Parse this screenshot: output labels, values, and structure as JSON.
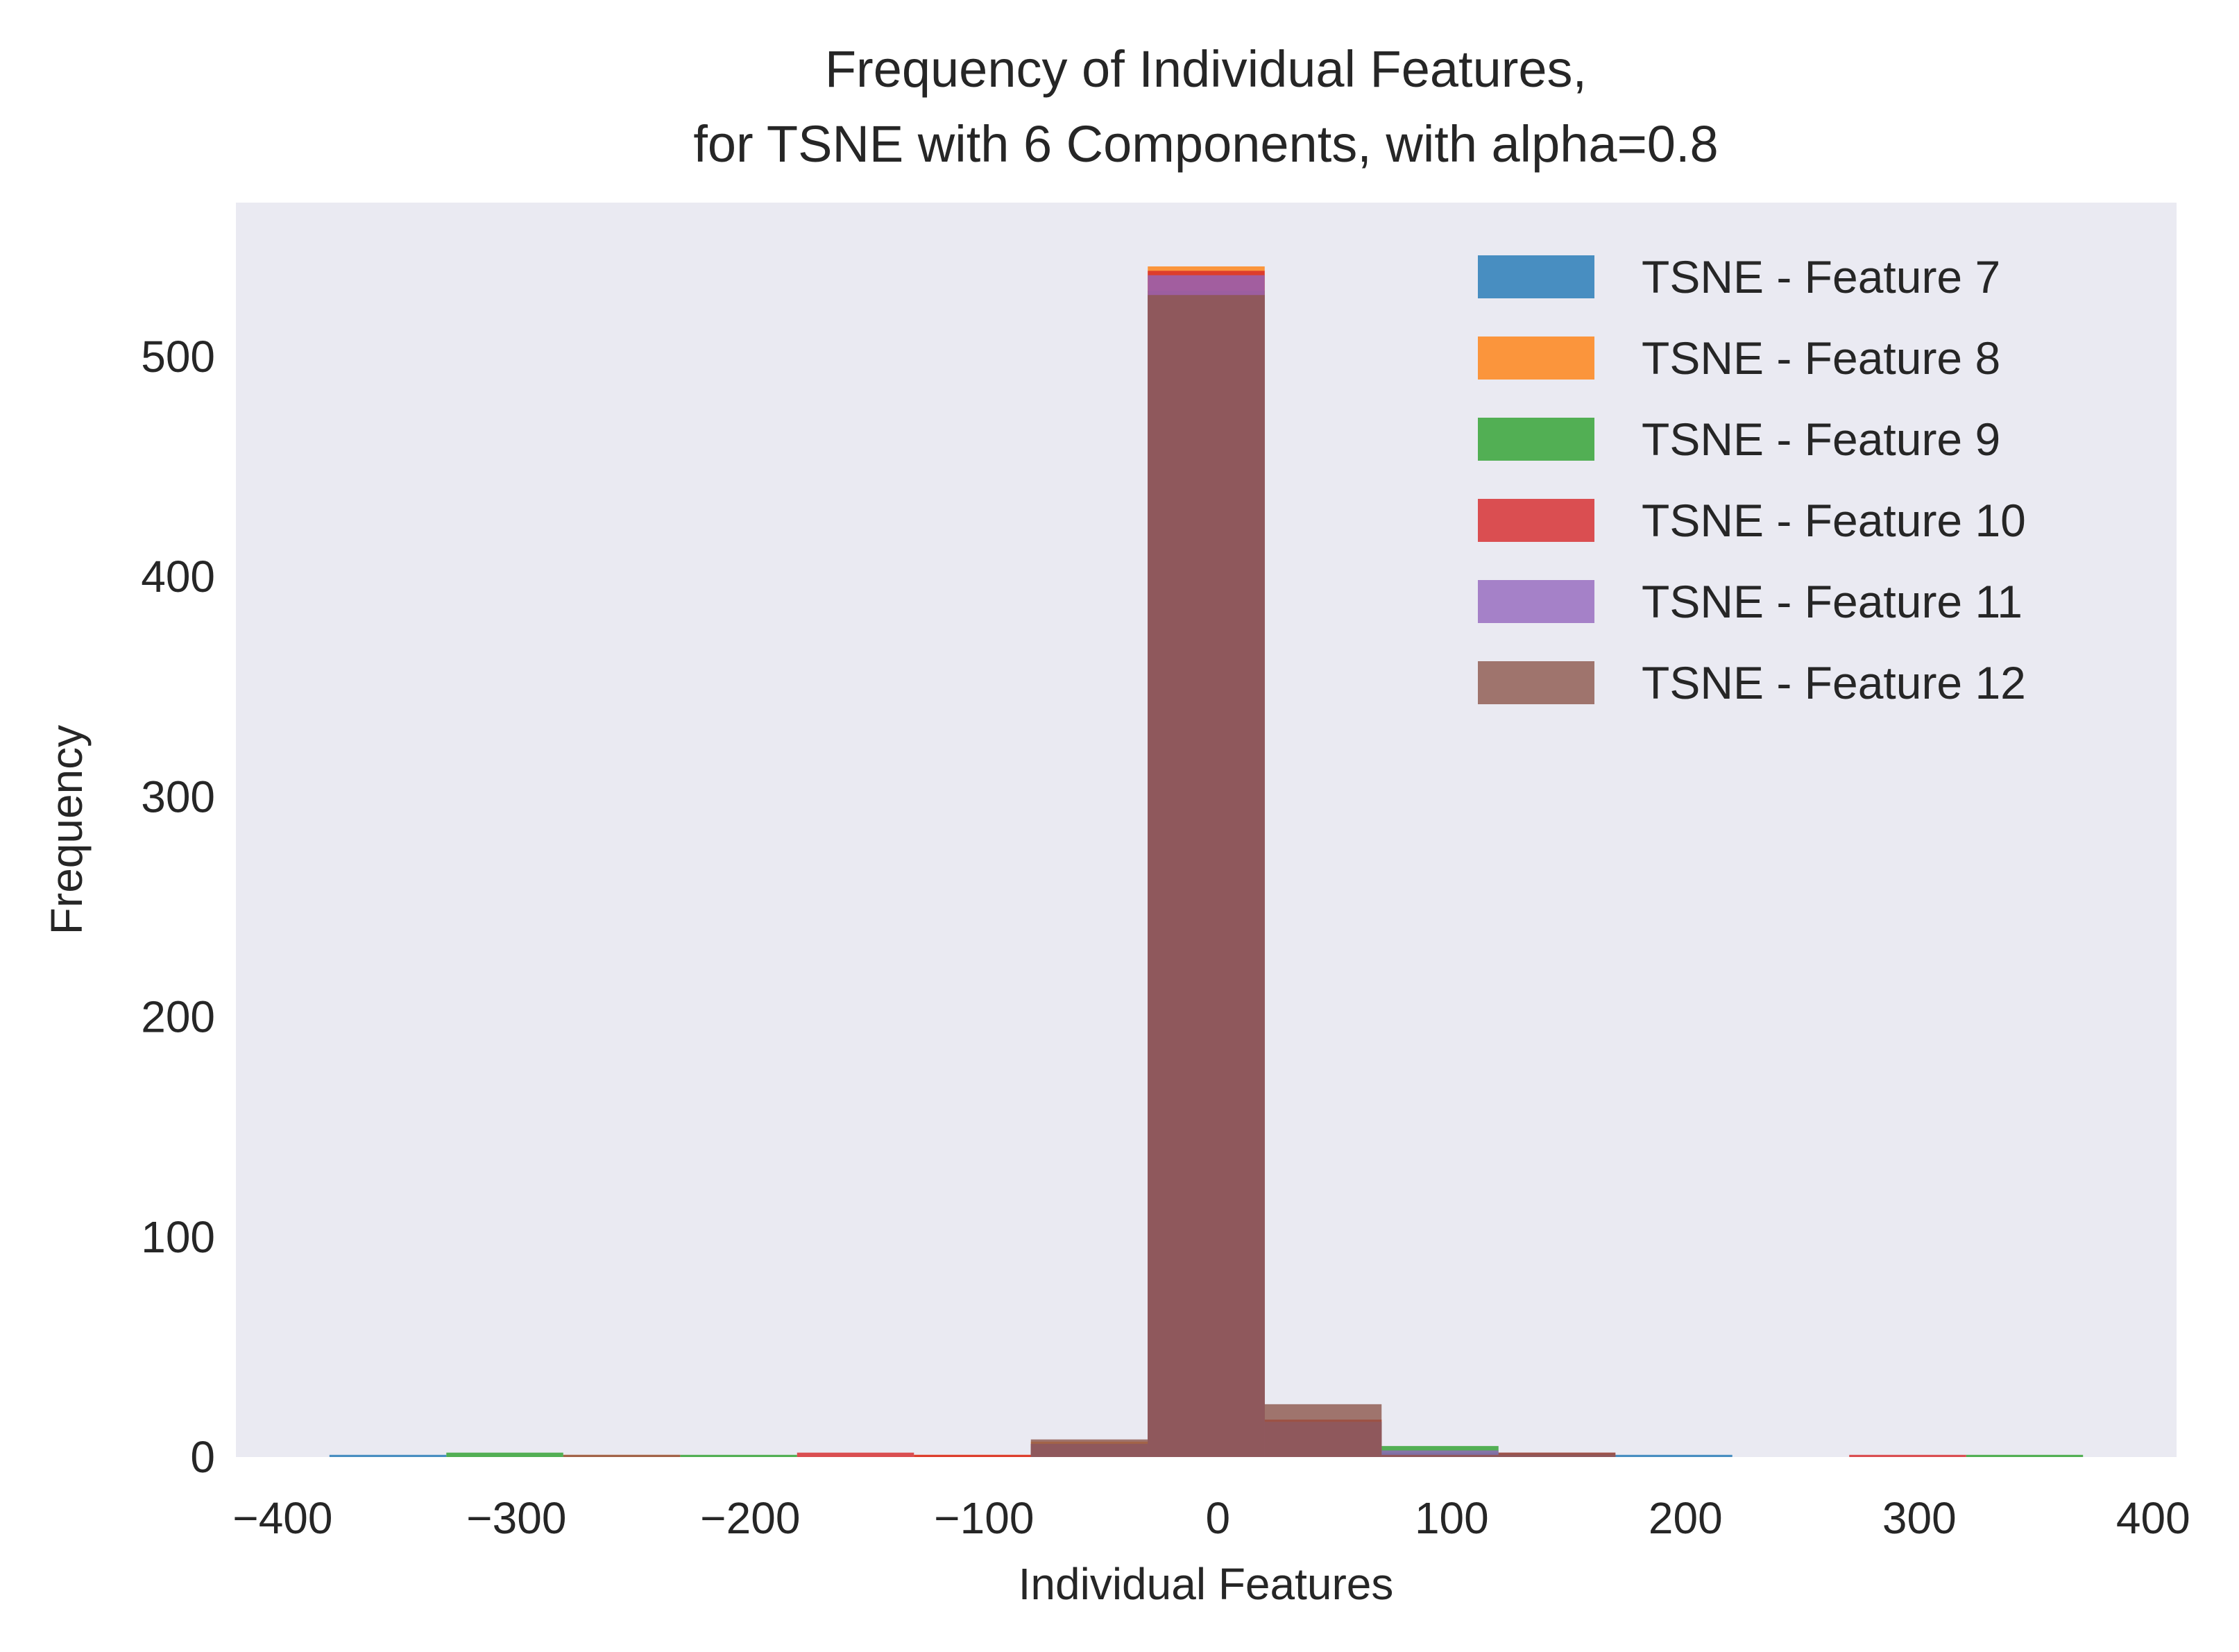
{
  "chart_data": {
    "type": "bar",
    "title": [
      "Frequency of Individual Features,",
      "for TSNE with 6 Components, with alpha=0.8"
    ],
    "xlabel": "Individual Features",
    "ylabel": "Frequency",
    "xlim": [
      -420,
      410
    ],
    "ylim": [
      0,
      570
    ],
    "xticks": [
      -400,
      -300,
      -200,
      -100,
      0,
      100,
      200,
      300,
      400
    ],
    "xtick_labels": [
      "−400",
      "−300",
      "−200",
      "−100",
      "0",
      "100",
      "200",
      "300",
      "400"
    ],
    "yticks": [
      0,
      100,
      200,
      300,
      400,
      500
    ],
    "ytick_labels": [
      "0",
      "100",
      "200",
      "300",
      "400",
      "500"
    ],
    "bin_edges": [
      -380,
      -330,
      -280,
      -230,
      -180,
      -130,
      -80,
      -30,
      20,
      70,
      120,
      170,
      220,
      270,
      320,
      370
    ],
    "alpha": 0.8,
    "grid": false,
    "legend_position": "top-right",
    "background": "#eaeaf2",
    "series": [
      {
        "name": "TSNE - Feature 7",
        "color": "#1f77b4",
        "values": [
          1,
          0,
          0,
          0,
          0,
          0,
          5,
          528,
          16,
          2,
          1,
          1,
          0,
          0,
          0
        ]
      },
      {
        "name": "TSNE - Feature 8",
        "color": "#ff7f0e",
        "values": [
          0,
          0,
          1,
          0,
          0,
          1,
          7,
          541,
          17,
          1,
          1,
          0,
          0,
          0,
          0
        ]
      },
      {
        "name": "TSNE - Feature 9",
        "color": "#2ca02c",
        "values": [
          0,
          2,
          0,
          1,
          0,
          0,
          6,
          530,
          16,
          5,
          1,
          0,
          0,
          0,
          1
        ]
      },
      {
        "name": "TSNE - Feature 10",
        "color": "#d62728",
        "values": [
          0,
          0,
          0,
          0,
          2,
          1,
          6,
          539,
          17,
          1,
          2,
          0,
          0,
          1,
          0
        ]
      },
      {
        "name": "TSNE - Feature 11",
        "color": "#9467bd",
        "values": [
          0,
          0,
          0,
          0,
          0,
          0,
          6,
          537,
          16,
          3,
          1,
          0,
          0,
          0,
          0
        ]
      },
      {
        "name": "TSNE - Feature 12",
        "color": "#8c564b",
        "values": [
          0,
          0,
          1,
          0,
          0,
          0,
          8,
          528,
          24,
          1,
          2,
          0,
          0,
          0,
          0
        ]
      }
    ]
  }
}
